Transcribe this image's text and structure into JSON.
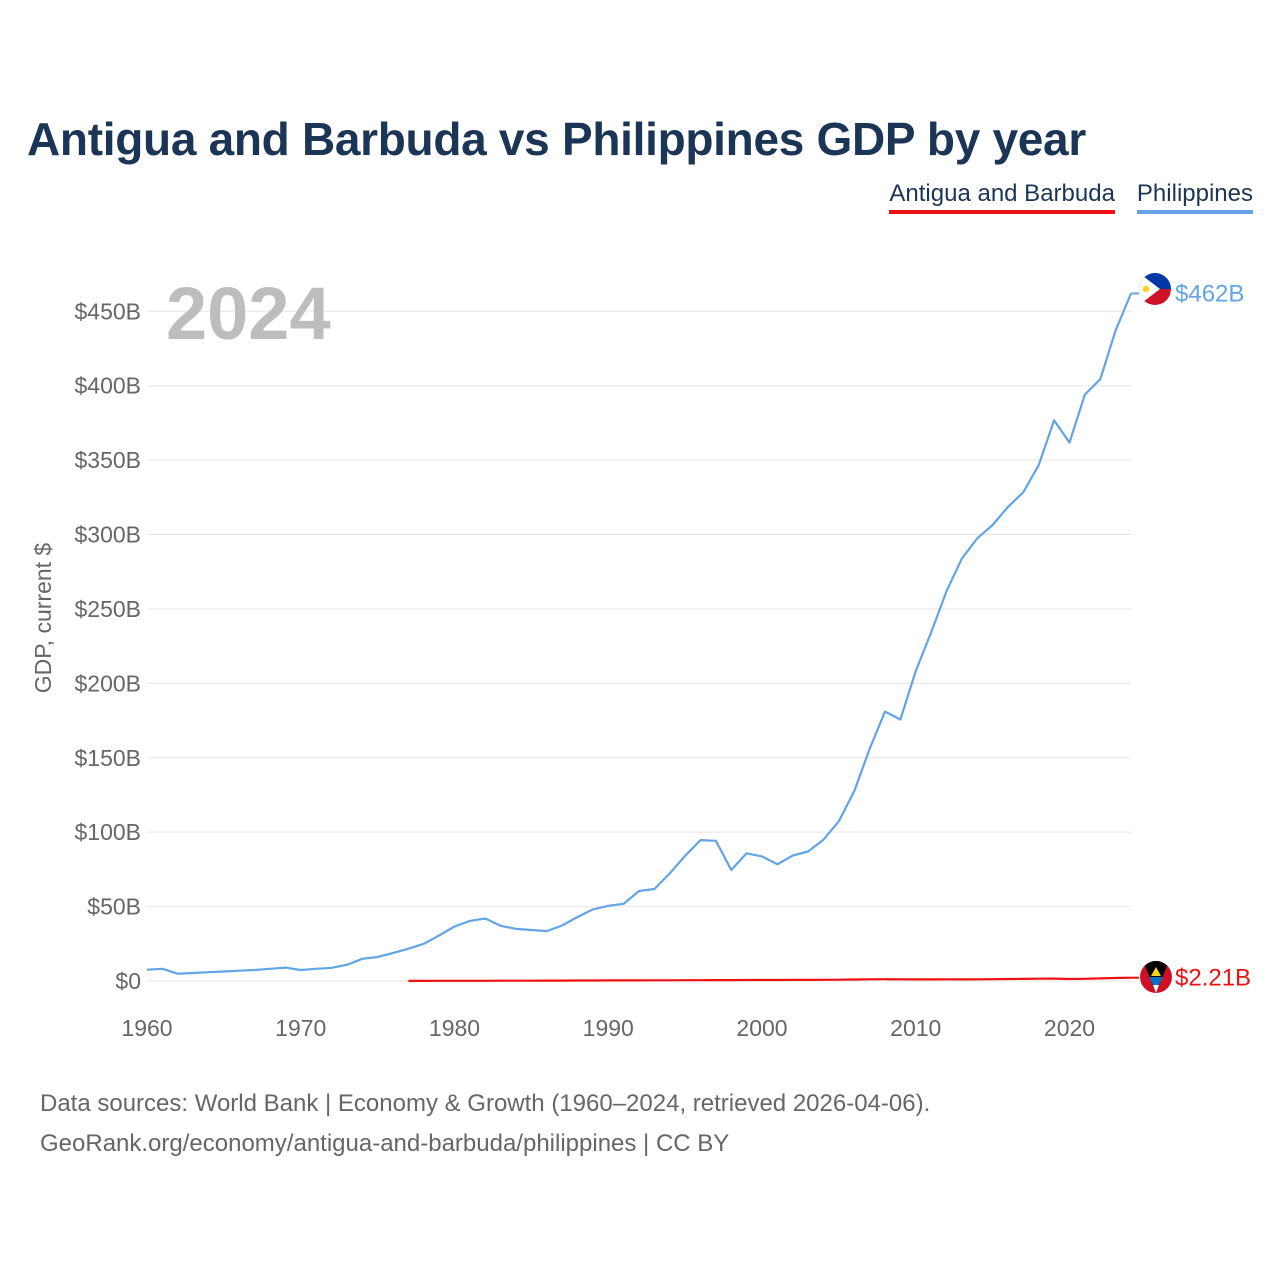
{
  "colors": {
    "antigua": "#ee1111",
    "philippines": "#63a4e6",
    "title": "#1b3556",
    "muted": "#666666"
  },
  "chart_data": {
    "type": "line",
    "title": "Antigua and Barbuda vs Philippines GDP by year",
    "ylabel": "GDP, current $",
    "xlabel": "",
    "current_year_label": "2024",
    "xlim": [
      1960,
      2024
    ],
    "ylim": [
      0,
      465
    ],
    "x_ticks": [
      1960,
      1970,
      1980,
      1990,
      2000,
      2010,
      2020
    ],
    "x_tick_labels": [
      "1960",
      "1970",
      "1980",
      "1990",
      "2000",
      "2010",
      "2020"
    ],
    "y_ticks": [
      0,
      50,
      100,
      150,
      200,
      250,
      300,
      350,
      400,
      450
    ],
    "y_tick_labels": [
      "$0",
      "$50B",
      "$100B",
      "$150B",
      "$200B",
      "$250B",
      "$300B",
      "$350B",
      "$400B",
      "$450B"
    ],
    "grid": true,
    "legend_position": "top-right",
    "units": "billions of current US$",
    "series": [
      {
        "name": "Antigua and Barbuda",
        "key": "antigua",
        "end_label": "$2.21B",
        "x": [
          1977,
          1978,
          1979,
          1980,
          1981,
          1982,
          1983,
          1984,
          1985,
          1986,
          1987,
          1988,
          1989,
          1990,
          1991,
          1992,
          1993,
          1994,
          1995,
          1996,
          1997,
          1998,
          1999,
          2000,
          2001,
          2002,
          2003,
          2004,
          2005,
          2006,
          2007,
          2008,
          2009,
          2010,
          2011,
          2012,
          2013,
          2014,
          2015,
          2016,
          2017,
          2018,
          2019,
          2020,
          2021,
          2022,
          2023,
          2024
        ],
        "values": [
          0.08,
          0.09,
          0.11,
          0.13,
          0.15,
          0.16,
          0.18,
          0.19,
          0.21,
          0.25,
          0.28,
          0.33,
          0.36,
          0.4,
          0.41,
          0.43,
          0.46,
          0.5,
          0.51,
          0.55,
          0.58,
          0.62,
          0.65,
          0.68,
          0.69,
          0.71,
          0.75,
          0.8,
          0.88,
          1.0,
          1.13,
          1.21,
          1.11,
          1.06,
          1.05,
          1.11,
          1.1,
          1.16,
          1.24,
          1.33,
          1.38,
          1.52,
          1.63,
          1.37,
          1.47,
          1.75,
          2.04,
          2.21
        ]
      },
      {
        "name": "Philippines",
        "key": "philippines",
        "end_label": "$462B",
        "x": [
          1960,
          1961,
          1962,
          1963,
          1964,
          1965,
          1966,
          1967,
          1968,
          1969,
          1970,
          1971,
          1972,
          1973,
          1974,
          1975,
          1976,
          1977,
          1978,
          1979,
          1980,
          1981,
          1982,
          1983,
          1984,
          1985,
          1986,
          1987,
          1988,
          1989,
          1990,
          1991,
          1992,
          1993,
          1994,
          1995,
          1996,
          1997,
          1998,
          1999,
          2000,
          2001,
          2002,
          2003,
          2004,
          2005,
          2006,
          2007,
          2008,
          2009,
          2010,
          2011,
          2012,
          2013,
          2014,
          2015,
          2016,
          2017,
          2018,
          2019,
          2020,
          2021,
          2022,
          2023,
          2024
        ],
        "values": [
          7.6,
          8.2,
          4.9,
          5.4,
          5.9,
          6.4,
          6.9,
          7.4,
          8.2,
          9.0,
          7.4,
          8.2,
          8.9,
          10.9,
          14.9,
          16.1,
          18.8,
          21.7,
          25.0,
          30.6,
          36.6,
          40.4,
          42.0,
          37.1,
          35.0,
          34.3,
          33.5,
          37.3,
          43.0,
          48.1,
          50.5,
          51.8,
          60.5,
          61.8,
          72.3,
          84.1,
          94.7,
          94.2,
          74.6,
          85.8,
          83.7,
          78.4,
          84.3,
          87.0,
          95.0,
          107.4,
          127.7,
          155.9,
          181.0,
          175.7,
          208.4,
          234.2,
          261.9,
          283.9,
          297.5,
          306.4,
          318.6,
          328.5,
          346.8,
          376.8,
          361.8,
          394.1,
          404.4,
          437.1,
          462.0
        ]
      }
    ]
  },
  "footer": {
    "line1": "Data sources: World Bank | Economy & Growth (1960–2024, retrieved 2026-04-06).",
    "line2": "GeoRank.org/economy/antigua-and-barbuda/philippines | CC BY"
  }
}
